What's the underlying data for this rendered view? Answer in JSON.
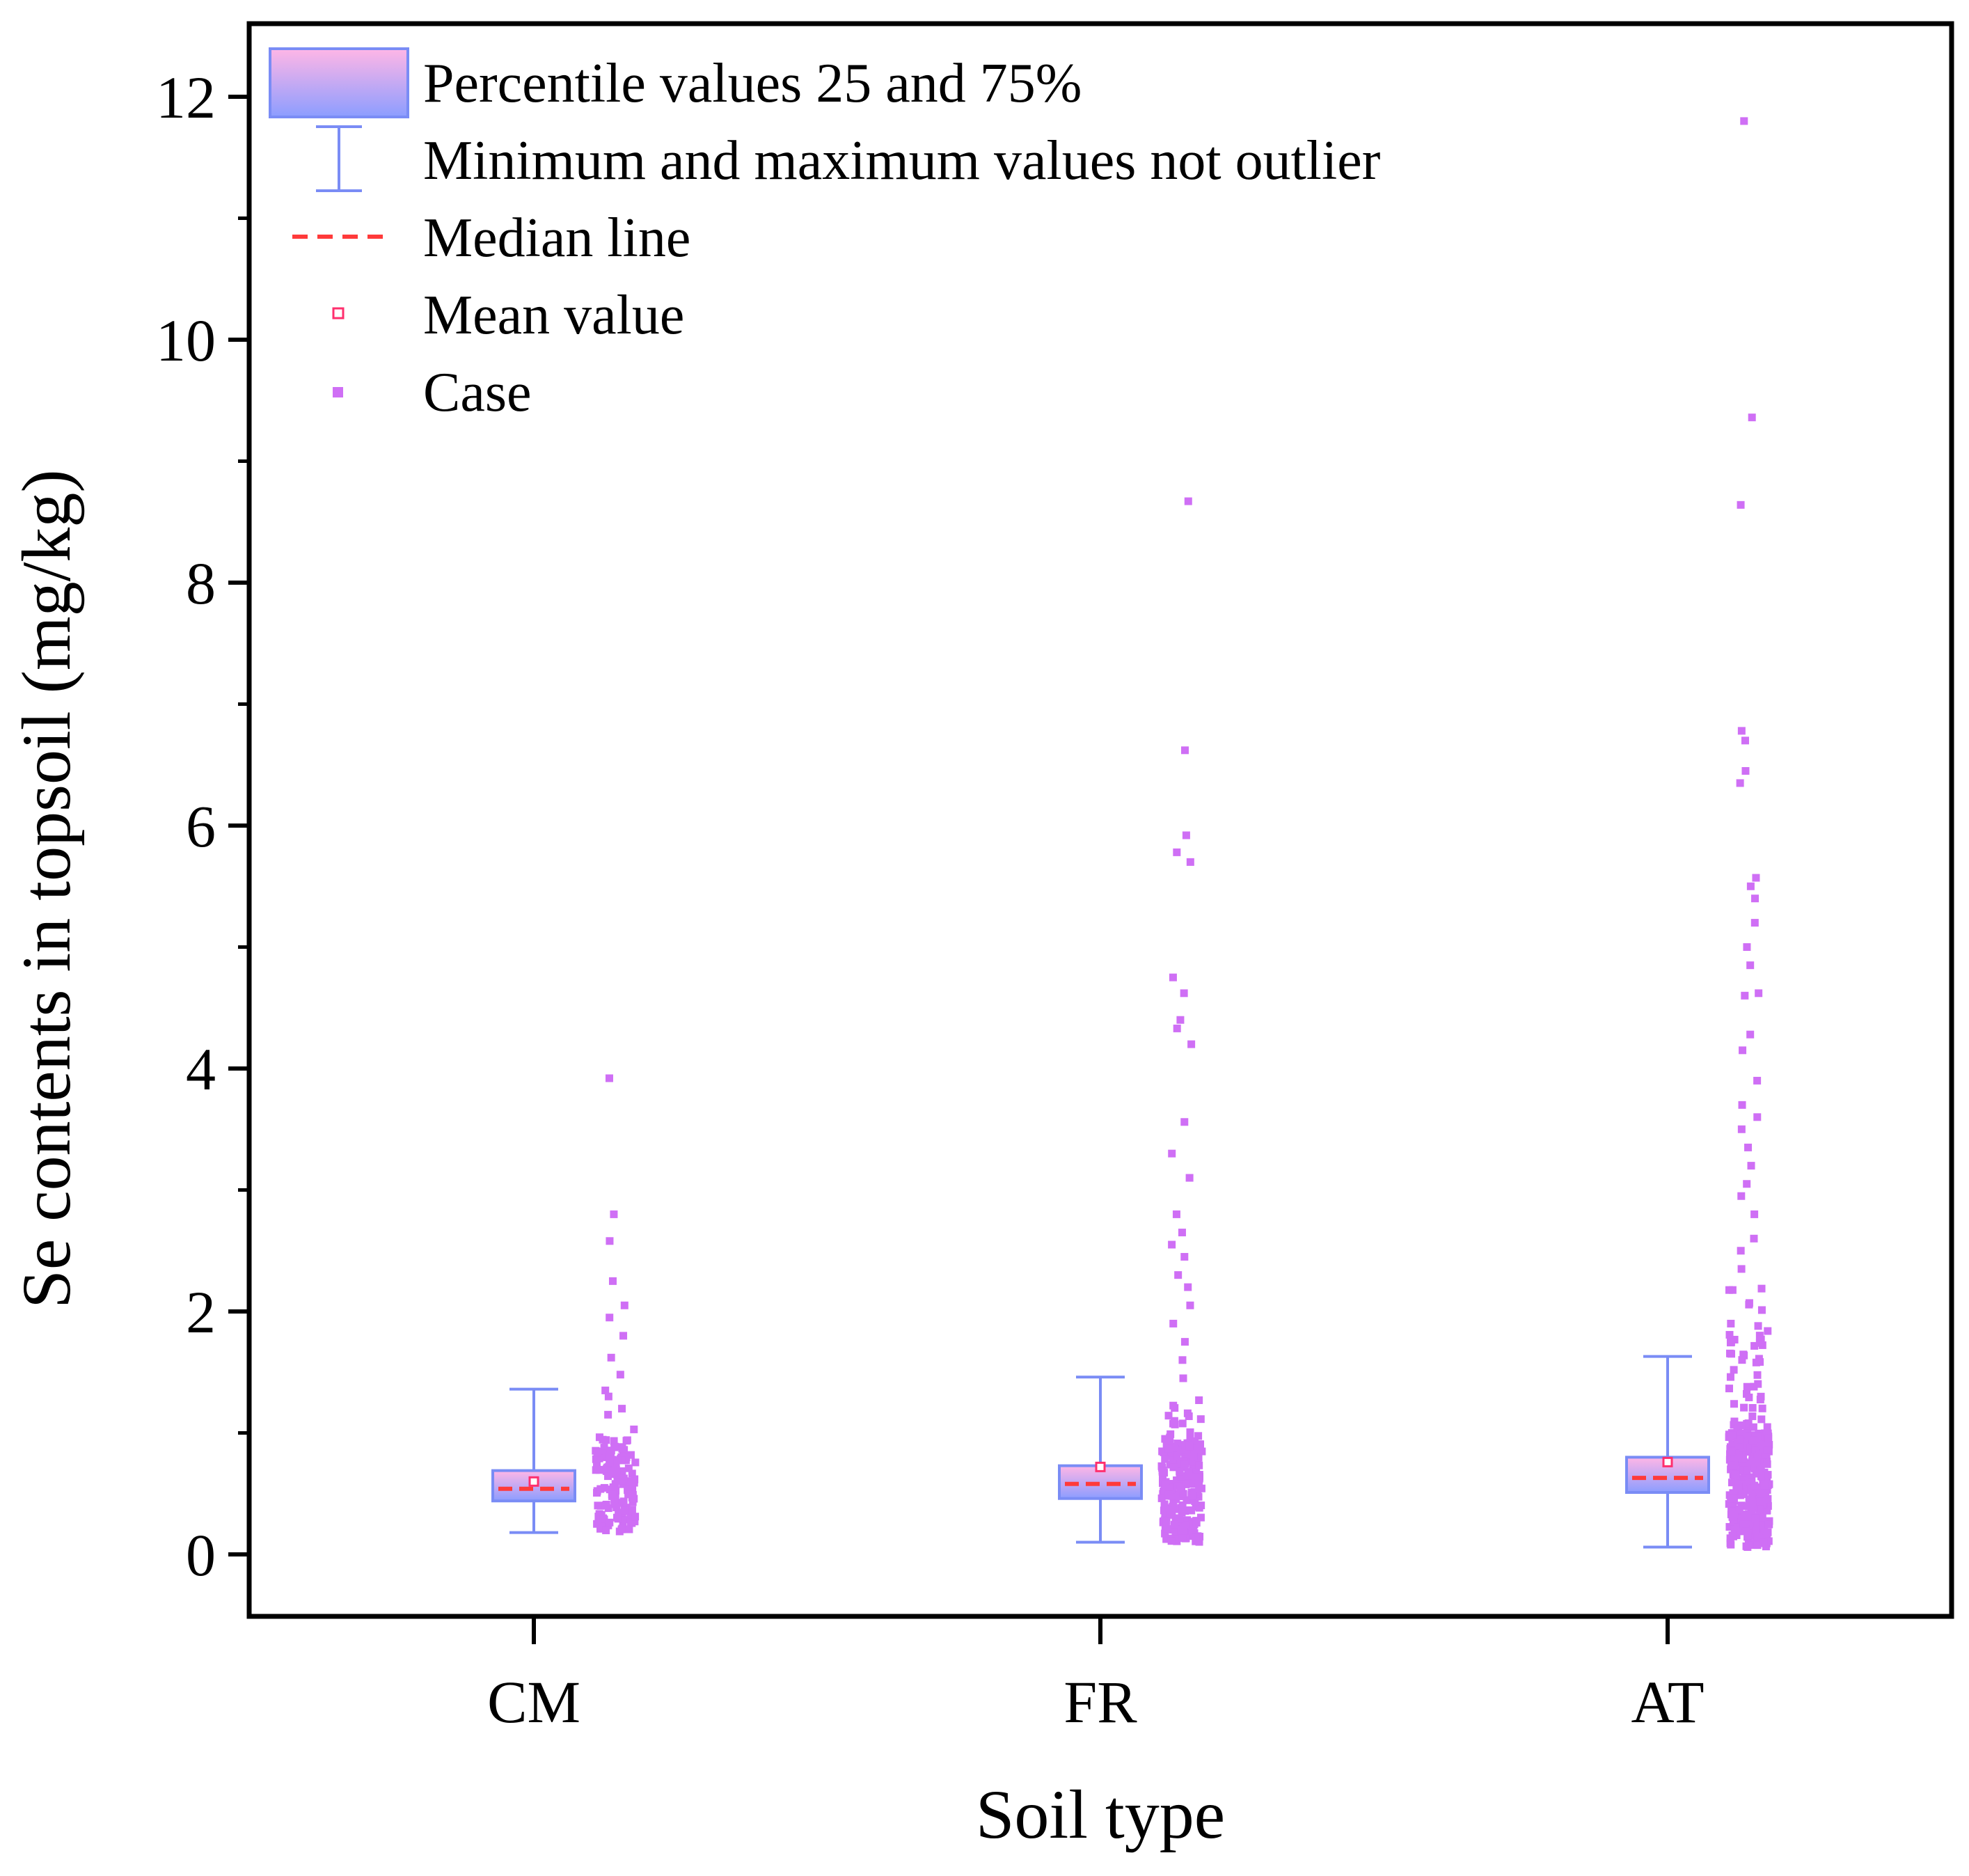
{
  "colors": {
    "box_top": "#ffb6e6",
    "box_bottom": "#8c9dff",
    "box_stroke": "#7a8cf5",
    "whisker": "#7a8cf5",
    "median": "#ff3a3a",
    "mean": "#ff2f6e",
    "case": "#cf6ff5",
    "axis": "#000000"
  },
  "chart_data": {
    "type": "box",
    "title": "",
    "xlabel": "Soil type",
    "ylabel": "Se contents in topsoil (mg/kg)",
    "categories": [
      "CM",
      "FR",
      "AT"
    ],
    "ylim": [
      -0.5,
      12.6
    ],
    "yticks": [
      0,
      2,
      4,
      6,
      8,
      10,
      12
    ],
    "ytick_labels": [
      "0",
      "2",
      "4",
      "6",
      "8",
      "10",
      "12"
    ],
    "legend": {
      "position": "top-left",
      "entries": [
        {
          "key": "box",
          "label": "Percentile values 25 and 75%"
        },
        {
          "key": "whisker",
          "label": "Minimum and maximum values not outlier"
        },
        {
          "key": "median",
          "label": "Median line"
        },
        {
          "key": "mean",
          "label": "Mean value"
        },
        {
          "key": "case",
          "label": "Case"
        }
      ]
    },
    "series": [
      {
        "name": "CM",
        "q1": 0.44,
        "q3": 0.69,
        "median": 0.54,
        "mean": 0.6,
        "whisker_low": 0.18,
        "whisker_high": 1.36,
        "case_count": 150,
        "case_bulk_range": [
          0.18,
          1.05
        ],
        "case_outliers": [
          1.15,
          1.2,
          1.3,
          1.35,
          1.48,
          1.62,
          1.8,
          1.95,
          2.05,
          2.25,
          2.58,
          2.8,
          3.92
        ]
      },
      {
        "name": "FR",
        "q1": 0.46,
        "q3": 0.73,
        "median": 0.58,
        "mean": 0.72,
        "whisker_low": 0.1,
        "whisker_high": 1.46,
        "case_count": 240,
        "case_bulk_range": [
          0.1,
          1.3
        ],
        "case_outliers": [
          1.45,
          1.6,
          1.75,
          1.9,
          2.05,
          2.2,
          2.3,
          2.45,
          2.55,
          2.65,
          2.8,
          3.1,
          3.3,
          3.56,
          4.2,
          4.33,
          4.4,
          4.62,
          4.75,
          5.7,
          5.78,
          5.92,
          6.62,
          8.67
        ]
      },
      {
        "name": "AT",
        "q1": 0.51,
        "q3": 0.8,
        "median": 0.63,
        "mean": 0.76,
        "whisker_low": 0.06,
        "whisker_high": 1.63,
        "case_count": 420,
        "case_bulk_range": [
          0.06,
          2.2
        ],
        "case_outliers": [
          2.35,
          2.5,
          2.6,
          2.8,
          2.95,
          3.05,
          3.2,
          3.35,
          3.5,
          3.6,
          3.7,
          3.9,
          4.15,
          4.28,
          4.6,
          4.62,
          4.85,
          5.0,
          5.2,
          5.4,
          5.5,
          5.57,
          6.35,
          6.45,
          6.7,
          6.78,
          8.64,
          9.36,
          11.8
        ]
      }
    ]
  }
}
